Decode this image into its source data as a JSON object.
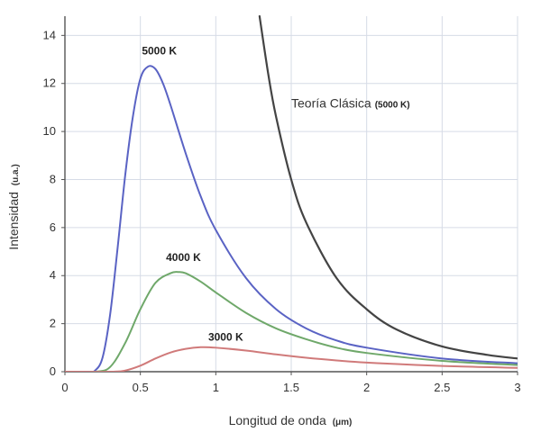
{
  "chart_data": {
    "type": "line",
    "title": "",
    "xlabel": "Longitud de onda",
    "xlabel_unit": "(μm)",
    "ylabel": "Intensidad",
    "ylabel_unit": "(u.a.)",
    "xlim": [
      0,
      3
    ],
    "ylim": [
      0,
      14.8
    ],
    "xticks": [
      0,
      0.5,
      1,
      1.5,
      2,
      2.5,
      3
    ],
    "xtick_labels": [
      "0",
      "0.5",
      "1",
      "1.5",
      "2",
      "2.5",
      "3"
    ],
    "yticks": [
      0,
      2,
      4,
      6,
      8,
      10,
      12,
      14
    ],
    "ytick_labels": [
      "0",
      "2",
      "4",
      "6",
      "8",
      "10",
      "12",
      "14"
    ],
    "grid": true,
    "legend": "none",
    "series": [
      {
        "name": "5000 K",
        "color": "#5a63c4",
        "x": [
          0,
          0.15,
          0.2,
          0.25,
          0.3,
          0.35,
          0.4,
          0.45,
          0.5,
          0.55,
          0.6,
          0.65,
          0.7,
          0.8,
          0.9,
          1.0,
          1.2,
          1.4,
          1.6,
          1.8,
          2.0,
          2.5,
          3.0
        ],
        "y": [
          0,
          0,
          0.05,
          0.6,
          2.4,
          5.2,
          8.2,
          10.6,
          12.2,
          12.7,
          12.6,
          12.0,
          11.1,
          9.1,
          7.3,
          5.9,
          3.9,
          2.6,
          1.8,
          1.3,
          1.0,
          0.55,
          0.35
        ]
      },
      {
        "name": "4000 K",
        "color": "#6fa86a",
        "x": [
          0,
          0.2,
          0.3,
          0.4,
          0.5,
          0.6,
          0.7,
          0.75,
          0.8,
          0.9,
          1.0,
          1.2,
          1.4,
          1.6,
          1.8,
          2.0,
          2.5,
          3.0
        ],
        "y": [
          0,
          0,
          0.2,
          1.2,
          2.6,
          3.7,
          4.1,
          4.15,
          4.1,
          3.75,
          3.3,
          2.45,
          1.8,
          1.35,
          1.0,
          0.78,
          0.45,
          0.28
        ]
      },
      {
        "name": "3000 K",
        "color": "#d07a7a",
        "x": [
          0,
          0.3,
          0.4,
          0.5,
          0.6,
          0.7,
          0.8,
          0.9,
          1.0,
          1.2,
          1.4,
          1.6,
          1.8,
          2.0,
          2.5,
          3.0
        ],
        "y": [
          0,
          0,
          0.05,
          0.25,
          0.55,
          0.8,
          0.95,
          1.02,
          1.0,
          0.88,
          0.72,
          0.58,
          0.47,
          0.38,
          0.24,
          0.16
        ]
      },
      {
        "name": "Teoría Clásica (5000 K)",
        "color": "#444444",
        "x": [
          1.29,
          1.35,
          1.4,
          1.5,
          1.6,
          1.8,
          2.0,
          2.2,
          2.5,
          2.8,
          3.0
        ],
        "y": [
          14.8,
          12.3,
          10.6,
          8.0,
          6.2,
          3.9,
          2.6,
          1.75,
          1.05,
          0.7,
          0.55
        ]
      }
    ],
    "annotations": [
      {
        "text": "5000 K",
        "series": "5000 K",
        "x": 0.51,
        "y": 13.2
      },
      {
        "text": "4000 K",
        "series": "4000 K",
        "x": 0.67,
        "y": 4.6
      },
      {
        "text": "3000 K",
        "series": "3000 K",
        "x": 0.95,
        "y": 1.3
      },
      {
        "text": "Teoría Clásica",
        "sub": "(5000 K)",
        "series": "Teoría Clásica (5000 K)",
        "x": 1.5,
        "y": 11.0
      }
    ]
  }
}
